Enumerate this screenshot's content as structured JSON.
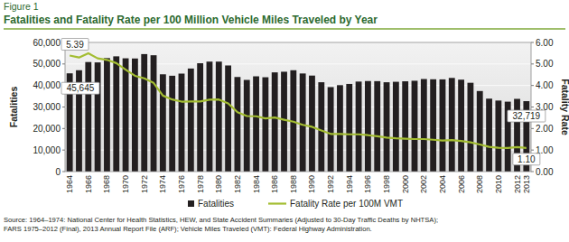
{
  "chart_data": {
    "type": "bar",
    "title": "Figure 1",
    "subtitle": "Fatalities and Fatality Rate per 100 Million Vehicle Miles Traveled by Year",
    "y_label": "Fatalities",
    "y2_label": "Fatality Rate",
    "categories": [
      "1964",
      null,
      "1966",
      null,
      "1968",
      null,
      "1970",
      null,
      "1972",
      null,
      "1974",
      null,
      "1976",
      null,
      "1978",
      null,
      "1980",
      null,
      "1982",
      null,
      "1984",
      null,
      "1986",
      null,
      "1988",
      null,
      "1990",
      null,
      "1992",
      null,
      "1994",
      null,
      "1996",
      null,
      "1998",
      null,
      "2000",
      null,
      "2002",
      null,
      "2004",
      null,
      "2006",
      null,
      "2008",
      null,
      "2010",
      null,
      "2012",
      "2013"
    ],
    "series": [
      {
        "name": "Fatalities",
        "type": "bar",
        "color": "#231f20",
        "values": [
          45645,
          47089,
          50894,
          50724,
          52725,
          53543,
          52627,
          52542,
          54589,
          54052,
          45196,
          44525,
          45523,
          47878,
          50331,
          51093,
          51091,
          49301,
          43945,
          42589,
          44257,
          43825,
          46087,
          46390,
          47087,
          45582,
          44599,
          41508,
          39250,
          40150,
          40716,
          41817,
          42065,
          42013,
          41501,
          41717,
          41945,
          42196,
          43005,
          42884,
          42836,
          43510,
          42708,
          41259,
          37423,
          33883,
          32999,
          32479,
          33782,
          32719
        ],
        "value_labels": [
          "45,645",
          null,
          null,
          null,
          null,
          null,
          null,
          null,
          null,
          null,
          null,
          null,
          null,
          null,
          null,
          null,
          null,
          null,
          null,
          null,
          null,
          null,
          null,
          null,
          null,
          null,
          null,
          null,
          null,
          null,
          null,
          null,
          null,
          null,
          null,
          null,
          null,
          null,
          null,
          null,
          null,
          null,
          null,
          null,
          null,
          null,
          null,
          null,
          null,
          "32,719"
        ]
      },
      {
        "name": "Fatality Rate per 100M VMT",
        "type": "line",
        "axis": "y2",
        "color": "#a3bd31",
        "values": [
          5.39,
          5.3,
          5.5,
          5.26,
          5.19,
          5.04,
          4.74,
          4.45,
          4.33,
          4.12,
          3.53,
          3.35,
          3.25,
          3.26,
          3.26,
          3.34,
          3.35,
          3.17,
          2.76,
          2.58,
          2.57,
          2.47,
          2.51,
          2.41,
          2.32,
          2.17,
          2.08,
          1.91,
          1.75,
          1.75,
          1.73,
          1.73,
          1.69,
          1.64,
          1.58,
          1.55,
          1.53,
          1.51,
          1.51,
          1.48,
          1.44,
          1.46,
          1.42,
          1.36,
          1.26,
          1.15,
          1.11,
          1.1,
          1.14,
          1.1
        ],
        "value_labels": [
          "5.39",
          null,
          null,
          null,
          null,
          null,
          null,
          null,
          null,
          null,
          null,
          null,
          null,
          null,
          null,
          null,
          null,
          null,
          null,
          null,
          null,
          null,
          null,
          null,
          null,
          null,
          null,
          null,
          null,
          null,
          null,
          null,
          null,
          null,
          null,
          null,
          null,
          null,
          null,
          null,
          null,
          null,
          null,
          null,
          null,
          null,
          null,
          null,
          null,
          "1.10"
        ]
      }
    ],
    "ylim": [
      0,
      60000
    ],
    "yticks": [
      0,
      {
        "value": 10000,
        "label": "10,000"
      },
      {
        "value": 20000,
        "label": "20,000"
      },
      {
        "value": 30000,
        "label": "30,000"
      },
      {
        "value": 40000,
        "label": "40,000"
      },
      {
        "value": 50000,
        "label": "50,000"
      },
      {
        "value": 60000,
        "label": "60,000"
      }
    ],
    "y2lim": [
      0,
      6
    ],
    "y2ticks": [
      {
        "value": 0,
        "label": "0.00"
      },
      {
        "value": 1,
        "label": "1.00"
      },
      {
        "value": 2,
        "label": "2.00"
      },
      {
        "value": 3,
        "label": "3.00"
      },
      {
        "value": 4,
        "label": "4.00"
      },
      {
        "value": 5,
        "label": "5.00"
      },
      {
        "value": 6,
        "label": "6.00"
      }
    ],
    "grid": true,
    "legend": "bottom",
    "source": [
      "Source: 1964–1974: National Center for Health Statistics, HEW, and State Accident Summaries (Adjusted to 30-Day Traffic Deaths by NHTSA);",
      "FARS 1975–2012 (Final), 2013 Annual Report File (ARF); Vehicle Miles Traveled (VMT): Federal Highway Administration."
    ]
  }
}
